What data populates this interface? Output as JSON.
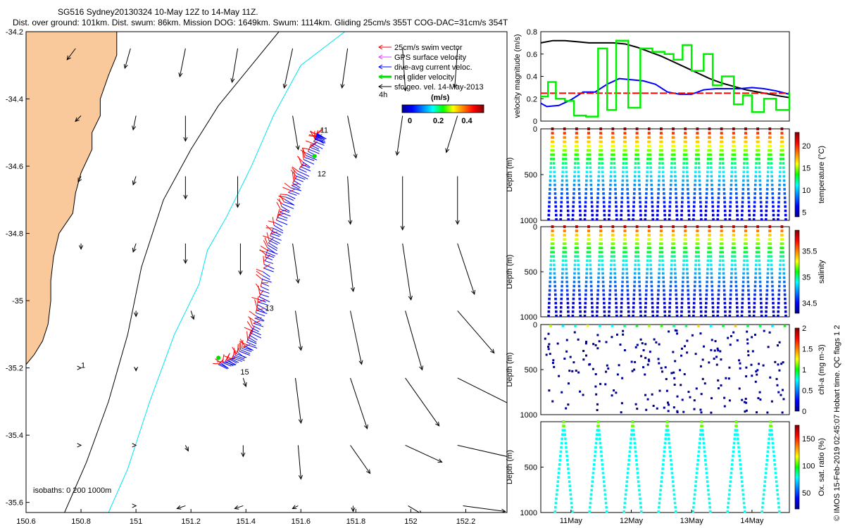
{
  "header": {
    "line1": "SG516 Sydney20130324 10-May 12Z to 14-May 11Z.",
    "line2": "Dist. over ground: 101km. Dist. swum: 86km. Mission DOG: 1649km. Swum: 1114km. Gliding 25cm/s 355T COG-DAC=31cm/s 354T"
  },
  "credit": "© IMOS 15-Feb-2019 02:45:07 Hobart time. QC flags 1  2",
  "colors": {
    "land": "#f9c89b",
    "swim": "#ff0000",
    "gps": "#e040ff",
    "dac": "#0000ff",
    "net": "#00dd00",
    "geo": "#000000",
    "iso200": "#000000",
    "iso1000": "#00e5ee"
  },
  "chart_data": [
    {
      "type": "map",
      "xlim": [
        150.6,
        152.35
      ],
      "ylim": [
        -35.63,
        -34.2
      ],
      "xticks": [
        "150.6",
        "150.8",
        "151",
        "151.2",
        "151.4",
        "151.6",
        "151.8",
        "152",
        "152.2"
      ],
      "yticks": [
        "-34.2",
        "-34.4",
        "-34.6",
        "-34.8",
        "-35",
        "-35.2",
        "-35.4",
        "-35.6"
      ],
      "legend": {
        "placement": "top-right",
        "entries": [
          {
            "label": "25cm/s swim vector",
            "color": "#ff0000"
          },
          {
            "label": "GPS surface velocity",
            "color": "#e040ff"
          },
          {
            "label": "dive-avg current veloc.",
            "color": "#0000ff"
          },
          {
            "label": "net glider velocity",
            "color": "#00dd00"
          },
          {
            "label": "sfc geo. vel. 14-May-2013",
            "color": "#000000"
          }
        ],
        "extra": "4h"
      },
      "colorbar": {
        "title": "(m/s)",
        "ticks": [
          "0",
          "0.2",
          "0.4"
        ],
        "range": [
          0,
          0.5
        ]
      },
      "isobath_label": "isobaths: 0   200   1000m",
      "day_labels": [
        {
          "text": "11",
          "lon": 151.67,
          "lat": -34.5
        },
        {
          "text": "12",
          "lon": 151.66,
          "lat": -34.63
        },
        {
          "text": "13",
          "lon": 151.47,
          "lat": -35.03
        },
        {
          "text": "15",
          "lon": 151.38,
          "lat": -35.22
        },
        {
          "text": "1",
          "lon": 150.8,
          "lat": -35.2
        }
      ],
      "track": [
        [
          151.3,
          -35.19
        ],
        [
          151.35,
          -35.17
        ],
        [
          151.4,
          -35.13
        ],
        [
          151.43,
          -35.06
        ],
        [
          151.45,
          -34.98
        ],
        [
          151.47,
          -34.87
        ],
        [
          151.49,
          -34.8
        ],
        [
          151.53,
          -34.72
        ],
        [
          151.57,
          -34.65
        ],
        [
          151.61,
          -34.58
        ],
        [
          151.65,
          -34.52
        ],
        [
          151.66,
          -34.5
        ]
      ],
      "geo_arrows": [
        {
          "lon": 150.78,
          "lat": -34.25,
          "u": -0.03,
          "v": -0.04
        },
        {
          "lon": 150.98,
          "lat": -34.25,
          "u": -0.02,
          "v": -0.07
        },
        {
          "lon": 151.18,
          "lat": -34.25,
          "u": -0.02,
          "v": -0.1
        },
        {
          "lon": 151.37,
          "lat": -34.25,
          "u": -0.02,
          "v": -0.12
        },
        {
          "lon": 151.57,
          "lat": -34.25,
          "u": -0.03,
          "v": -0.14
        },
        {
          "lon": 151.77,
          "lat": -34.25,
          "u": -0.02,
          "v": -0.14
        },
        {
          "lon": 151.97,
          "lat": -34.25,
          "u": 0.01,
          "v": -0.15
        },
        {
          "lon": 152.17,
          "lat": -34.25,
          "u": -0.01,
          "v": -0.14
        },
        {
          "lon": 150.8,
          "lat": -34.45,
          "u": -0.02,
          "v": -0.02
        },
        {
          "lon": 151.0,
          "lat": -34.45,
          "u": -0.01,
          "v": -0.05
        },
        {
          "lon": 151.18,
          "lat": -34.45,
          "u": 0.0,
          "v": -0.09
        },
        {
          "lon": 151.57,
          "lat": -34.45,
          "u": 0.02,
          "v": -0.12
        },
        {
          "lon": 151.77,
          "lat": -34.45,
          "u": 0.03,
          "v": -0.15
        },
        {
          "lon": 151.97,
          "lat": -34.45,
          "u": -0.02,
          "v": -0.14
        },
        {
          "lon": 152.17,
          "lat": -34.45,
          "u": -0.04,
          "v": -0.13
        },
        {
          "lon": 150.8,
          "lat": -34.63,
          "u": -0.01,
          "v": -0.02
        },
        {
          "lon": 151.0,
          "lat": -34.63,
          "u": -0.01,
          "v": -0.03
        },
        {
          "lon": 151.18,
          "lat": -34.63,
          "u": 0.0,
          "v": -0.08
        },
        {
          "lon": 151.37,
          "lat": -34.63,
          "u": 0.0,
          "v": -0.11
        },
        {
          "lon": 151.77,
          "lat": -34.63,
          "u": 0.01,
          "v": -0.17
        },
        {
          "lon": 151.97,
          "lat": -34.63,
          "u": 0.0,
          "v": -0.19
        },
        {
          "lon": 152.17,
          "lat": -34.63,
          "u": 0.0,
          "v": -0.17
        },
        {
          "lon": 150.8,
          "lat": -34.83,
          "u": 0.0,
          "v": -0.02
        },
        {
          "lon": 151.0,
          "lat": -34.83,
          "u": -0.01,
          "v": -0.03
        },
        {
          "lon": 151.18,
          "lat": -34.83,
          "u": 0.0,
          "v": -0.07
        },
        {
          "lon": 151.38,
          "lat": -34.83,
          "u": 0.0,
          "v": -0.11
        },
        {
          "lon": 151.57,
          "lat": -34.83,
          "u": 0.02,
          "v": -0.14
        },
        {
          "lon": 151.77,
          "lat": -34.83,
          "u": 0.02,
          "v": -0.17
        },
        {
          "lon": 151.97,
          "lat": -34.83,
          "u": 0.03,
          "v": -0.2
        },
        {
          "lon": 152.17,
          "lat": -34.83,
          "u": 0.06,
          "v": -0.18
        },
        {
          "lon": 151.0,
          "lat": -35.03,
          "u": 0.0,
          "v": -0.02
        },
        {
          "lon": 151.2,
          "lat": -35.03,
          "u": 0.01,
          "v": -0.03
        },
        {
          "lon": 151.58,
          "lat": -35.03,
          "u": 0.02,
          "v": -0.14
        },
        {
          "lon": 151.78,
          "lat": -35.03,
          "u": 0.04,
          "v": -0.19
        },
        {
          "lon": 151.98,
          "lat": -35.03,
          "u": 0.06,
          "v": -0.21
        },
        {
          "lon": 152.17,
          "lat": -35.03,
          "u": 0.13,
          "v": -0.15
        },
        {
          "lon": 150.8,
          "lat": -35.2,
          "u": 0.0,
          "v": 0.0
        },
        {
          "lon": 151.0,
          "lat": -35.2,
          "u": 0.0,
          "v": -0.01
        },
        {
          "lon": 151.39,
          "lat": -35.23,
          "u": 0.01,
          "v": -0.03
        },
        {
          "lon": 151.58,
          "lat": -35.23,
          "u": 0.02,
          "v": -0.16
        },
        {
          "lon": 151.78,
          "lat": -35.23,
          "u": 0.06,
          "v": -0.18
        },
        {
          "lon": 151.98,
          "lat": -35.23,
          "u": 0.12,
          "v": -0.17
        },
        {
          "lon": 152.17,
          "lat": -35.23,
          "u": 0.2,
          "v": -0.1
        },
        {
          "lon": 150.8,
          "lat": -35.43,
          "u": 0.0,
          "v": 0.0
        },
        {
          "lon": 151.0,
          "lat": -35.43,
          "u": 0.0,
          "v": 0.0
        },
        {
          "lon": 151.18,
          "lat": -35.43,
          "u": 0.01,
          "v": -0.02
        },
        {
          "lon": 151.39,
          "lat": -35.43,
          "u": 0.0,
          "v": -0.04
        },
        {
          "lon": 151.59,
          "lat": -35.43,
          "u": 0.01,
          "v": -0.12
        },
        {
          "lon": 151.78,
          "lat": -35.43,
          "u": 0.07,
          "v": -0.1
        },
        {
          "lon": 151.98,
          "lat": -35.43,
          "u": 0.13,
          "v": -0.06
        },
        {
          "lon": 152.17,
          "lat": -35.43,
          "u": 0.22,
          "v": -0.05
        },
        {
          "lon": 151.0,
          "lat": -35.61,
          "u": 0.0,
          "v": 0.0
        },
        {
          "lon": 151.18,
          "lat": -35.61,
          "u": -0.03,
          "v": -0.01
        },
        {
          "lon": 151.39,
          "lat": -35.61,
          "u": -0.03,
          "v": -0.01
        },
        {
          "lon": 151.59,
          "lat": -35.61,
          "u": -0.02,
          "v": -0.01
        },
        {
          "lon": 151.79,
          "lat": -35.61,
          "u": 0.0,
          "v": -0.02
        },
        {
          "lon": 151.99,
          "lat": -35.61,
          "u": 0.05,
          "v": -0.03
        },
        {
          "lon": 152.19,
          "lat": -35.61,
          "u": 0.15,
          "v": -0.02
        }
      ]
    },
    {
      "type": "line",
      "ylabel": "velocity magnitude (m/s)",
      "ylim": [
        0,
        0.8
      ],
      "yticks": [
        "0",
        "0.2",
        "0.4",
        "0.6",
        "0.8"
      ],
      "xlim": [
        10.5,
        14.62
      ],
      "series": [
        {
          "color": "#000000",
          "x": [
            10.5,
            10.7,
            10.9,
            11.1,
            11.3,
            11.5,
            11.7,
            11.9,
            12.1,
            12.3,
            12.5,
            12.7,
            12.9,
            13.1,
            13.3,
            13.5,
            13.7,
            13.9,
            14.1,
            14.3,
            14.5,
            14.62
          ],
          "values": [
            0.7,
            0.72,
            0.72,
            0.71,
            0.7,
            0.7,
            0.7,
            0.69,
            0.66,
            0.62,
            0.58,
            0.53,
            0.48,
            0.43,
            0.38,
            0.34,
            0.31,
            0.28,
            0.26,
            0.24,
            0.22,
            0.21
          ]
        },
        {
          "color": "#0000ff",
          "x": [
            10.5,
            10.6,
            10.8,
            11.0,
            11.2,
            11.4,
            11.6,
            11.8,
            12.0,
            12.2,
            12.4,
            12.6,
            12.8,
            13.0,
            13.2,
            13.4,
            13.6,
            13.8,
            14.0,
            14.2,
            14.4,
            14.62
          ],
          "values": [
            0.16,
            0.13,
            0.14,
            0.19,
            0.26,
            0.26,
            0.33,
            0.38,
            0.37,
            0.36,
            0.33,
            0.26,
            0.24,
            0.24,
            0.28,
            0.29,
            0.29,
            0.29,
            0.3,
            0.29,
            0.27,
            0.24
          ]
        },
        {
          "color": "#ff0000",
          "dashed": true,
          "x": [
            10.5,
            14.62
          ],
          "values": [
            0.25,
            0.25
          ]
        },
        {
          "color": "#00ee00",
          "step": true,
          "x": [
            10.5,
            10.62,
            10.75,
            10.9,
            11.05,
            11.25,
            11.45,
            11.6,
            11.75,
            11.95,
            12.15,
            12.35,
            12.55,
            12.7,
            12.85,
            13.0,
            13.2,
            13.35,
            13.5,
            13.7,
            13.85,
            14.0,
            14.2,
            14.4,
            14.62
          ],
          "values": [
            0.22,
            0.35,
            0.2,
            0.18,
            0.05,
            0.04,
            0.65,
            0.1,
            0.72,
            0.12,
            0.65,
            0.62,
            0.6,
            0.55,
            0.68,
            0.45,
            0.6,
            0.32,
            0.4,
            0.15,
            0.23,
            0.08,
            0.2,
            0.1,
            0.26
          ]
        }
      ]
    },
    {
      "type": "scatter",
      "ylabel": "Depth (m)",
      "yticks": [
        "0",
        "500",
        "1000"
      ],
      "ylim": [
        0,
        1000
      ],
      "colorbar_label": "temperature (°C)",
      "colorbar_ticks": [
        "5",
        "10",
        "15",
        "20"
      ],
      "crange": [
        4,
        23
      ],
      "dives": 20
    },
    {
      "type": "scatter",
      "ylabel": "Depth (m)",
      "yticks": [
        "0",
        "500",
        "1000"
      ],
      "ylim": [
        0,
        1000
      ],
      "colorbar_label": "salinity",
      "colorbar_ticks": [
        "34.5",
        "35",
        "35.5"
      ],
      "crange": [
        34.3,
        35.9
      ],
      "dives": 20
    },
    {
      "type": "scatter",
      "ylabel": "Depth (m)",
      "yticks": [
        "0",
        "500",
        "1000"
      ],
      "ylim": [
        0,
        1000
      ],
      "colorbar_label": "chl-a (mg m-3)",
      "colorbar_ticks": [
        "0",
        "0.5",
        "1",
        "1.5",
        "2"
      ],
      "crange": [
        0,
        2
      ]
    },
    {
      "type": "scatter",
      "ylabel": "Depth (m)",
      "yticks": [
        "500",
        "1000"
      ],
      "ylim": [
        0,
        1000
      ],
      "colorbar_label": "Ox. sat. ratio (%)",
      "colorbar_ticks": [
        "50",
        "100",
        "150"
      ],
      "crange": [
        20,
        175
      ],
      "dives": 7,
      "xticks": [
        "11May",
        "12May",
        "13May",
        "14May"
      ],
      "xtick_values": [
        11,
        12,
        13,
        14
      ]
    }
  ]
}
